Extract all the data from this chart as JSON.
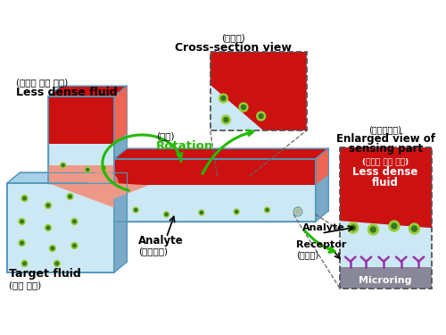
{
  "bg_color": "#ffffff",
  "red_color": "#cc1111",
  "red_light": "#ee6655",
  "blue_light": "#cce8f4",
  "blue_mid": "#a8d0e8",
  "blue_dark": "#7aaac8",
  "blue_outline": "#5599bb",
  "green_dot_outer": "#99cc33",
  "green_dot_inner": "#337722",
  "purple_receptor": "#9933aa",
  "gray_microring": "#888899",
  "green_arrow": "#22bb00",
  "black": "#111111",
  "white": "#ffffff",
  "pink_blend": "#ee9988",
  "texts": {
    "less_dense_korean": "(밀도가 낮은 유체)",
    "less_dense_eng": "Less dense fluid",
    "target_fluid_eng": "Target fluid",
    "target_fluid_korean": "(타겟 유체)",
    "rotation_korean": "(회전)",
    "rotation_eng": "Rotation",
    "analyte_eng": "Analyte",
    "analyte_korean": "(피분석물)",
    "cross_section_korean": "(단면도)",
    "cross_section_eng": "Cross-section view",
    "enlarged_korean": "(확대단면도)",
    "enlarged_eng1": "Enlarged view of",
    "enlarged_eng2": "sensing part",
    "less_dense_box_korean": "(밀도가 낮은 유체)",
    "less_dense_box_eng1": "Less dense",
    "less_dense_box_eng2": "fluid",
    "analyte_label": "Analyte",
    "receptor_eng": "Receptor",
    "receptor_korean": "(수용기)",
    "microring": "Microring"
  }
}
